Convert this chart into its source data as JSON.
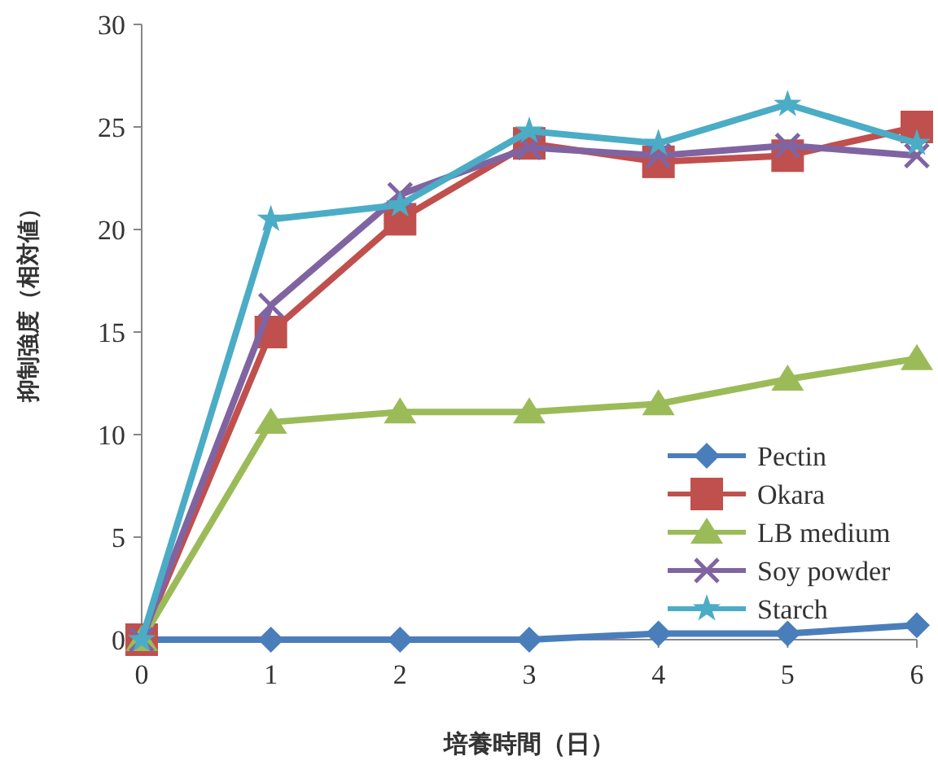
{
  "chart_data": {
    "type": "line",
    "xlabel": "培養時間（日）",
    "ylabel": "抑制強度（相対値）",
    "x": [
      0,
      1,
      2,
      3,
      4,
      5,
      6
    ],
    "xlim": [
      0,
      6
    ],
    "xticks": [
      0,
      1,
      2,
      3,
      4,
      5,
      6
    ],
    "ylim": [
      0,
      30
    ],
    "yticks": [
      0,
      5,
      10,
      15,
      20,
      25,
      30
    ],
    "grid": false,
    "legend": "bottom right",
    "line_style": "solid",
    "series": [
      {
        "name": "Pectin",
        "color": "#4a7ebb",
        "marker": "diamond",
        "values": [
          0,
          0,
          0,
          0,
          0.3,
          0.3,
          0.7
        ]
      },
      {
        "name": "Okara",
        "color": "#c0504d",
        "marker": "square",
        "values": [
          0,
          15,
          20.5,
          24.2,
          23.3,
          23.6,
          25
        ]
      },
      {
        "name": "LB medium",
        "color": "#9bbb59",
        "marker": "triangle",
        "values": [
          0,
          10.6,
          11.1,
          11.1,
          11.5,
          12.7,
          13.7
        ]
      },
      {
        "name": "Soy powder",
        "color": "#8064a2",
        "marker": "cross",
        "values": [
          0,
          16.3,
          21.7,
          24,
          23.6,
          24.1,
          23.6
        ]
      },
      {
        "name": "Starch",
        "color": "#4bacc6",
        "marker": "star",
        "values": [
          0,
          20.5,
          21.2,
          24.8,
          24.2,
          26.1,
          24.2
        ]
      }
    ]
  }
}
